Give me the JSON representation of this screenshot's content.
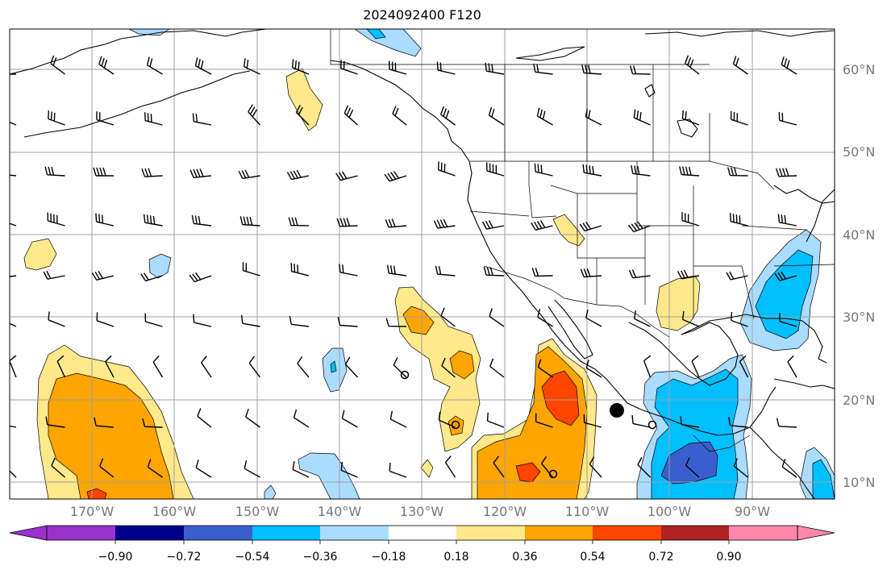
{
  "title": "2024092400 F120",
  "latitude_labels": [
    "60°N",
    "50°N",
    "40°N",
    "30°N",
    "20°N",
    "10°N"
  ],
  "longitude_labels": [
    "170°W",
    "160°W",
    "150°W",
    "140°W",
    "130°W",
    "120°W",
    "110°W",
    "100°W",
    "90°W"
  ],
  "colorbar": {
    "tick_labels": [
      "−0.90",
      "−0.72",
      "−0.54",
      "−0.36",
      "−0.18",
      "0.18",
      "0.36",
      "0.54",
      "0.72",
      "0.90"
    ],
    "colors": [
      "#9932cc",
      "#00008b",
      "#3a5fcd",
      "#00bfff",
      "#aadcff",
      "#ffffff",
      "#ffe98a",
      "#ffa500",
      "#ff4500",
      "#b22222",
      "#ff88aa"
    ]
  },
  "map_region": {
    "lon_range": [
      -180,
      -80
    ],
    "lat_range": [
      8,
      65
    ],
    "projection": "PlateCarree",
    "gridlines": true
  },
  "storm_markers": [
    {
      "type": "filled-circle",
      "lon": -106.5,
      "lat": 18.8
    },
    {
      "type": "open-circle",
      "lon": -101.9,
      "lat": 17.0
    },
    {
      "type": "open-circle",
      "lon": -131.9,
      "lat": 22.9
    },
    {
      "type": "open-circle",
      "lon": -126.4,
      "lat": 17.0
    },
    {
      "type": "open-circle",
      "lon": -113.5,
      "lat": 11.0
    }
  ]
}
